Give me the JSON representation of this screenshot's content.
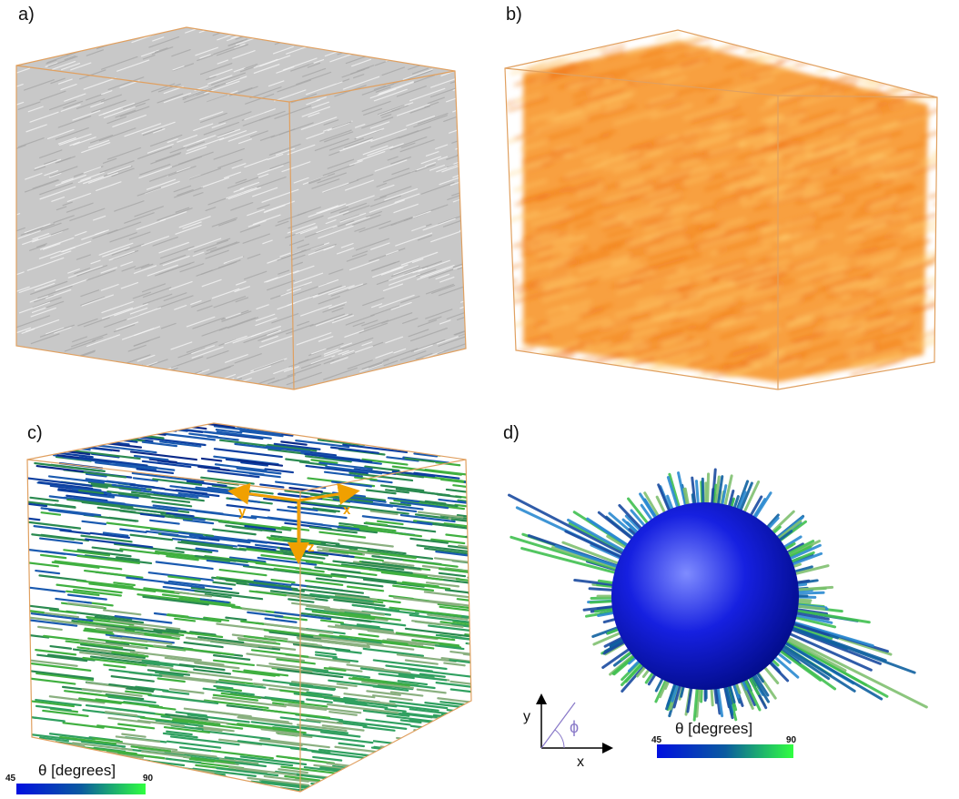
{
  "panels": [
    {
      "label": "a)"
    },
    {
      "label": "b)"
    },
    {
      "label": "c)",
      "axes": {
        "y": "y",
        "x": "x",
        "z": "z"
      },
      "colorbar": {
        "title": "θ [degrees]",
        "min": 45,
        "max": 90
      }
    },
    {
      "label": "d)",
      "axes": {
        "y": "y",
        "x": "x",
        "angle": "ϕ"
      },
      "colorbar": {
        "title": "θ [degrees]",
        "min": 45,
        "max": 90
      }
    }
  ]
}
